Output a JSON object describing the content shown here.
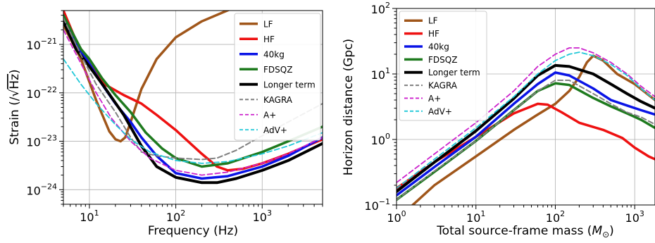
{
  "chart_data": [
    {
      "type": "line",
      "xscale": "log",
      "yscale": "log",
      "xlim": [
        5,
        5000
      ],
      "ylim": [
        5e-25,
        5e-21
      ],
      "xlabel": "Frequency (Hz)",
      "ylabel": "Strain (/√Hz)",
      "ylabel_parts": {
        "pre": "Strain (/",
        "root": "√",
        "rad": "Hz",
        "post": ")"
      },
      "xtick_labels": [
        {
          "value": 10,
          "base": "10",
          "exp": "1"
        },
        {
          "value": 100,
          "base": "10",
          "exp": "2"
        },
        {
          "value": 1000,
          "base": "10",
          "exp": "3"
        }
      ],
      "ytick_labels": [
        {
          "value": 1e-24,
          "base": "10",
          "exp": "−24"
        },
        {
          "value": 1e-23,
          "base": "10",
          "exp": "−23"
        },
        {
          "value": 1e-22,
          "base": "10",
          "exp": "−22"
        },
        {
          "value": 1e-21,
          "base": "10",
          "exp": "−21"
        }
      ],
      "grid": true,
      "legend_position": "top-right",
      "series": [
        {
          "name": "LF",
          "color": "#a0561a",
          "width": 3.5,
          "dash": "",
          "points": [
            [
              5,
              2.5e-21
            ],
            [
              8,
              5e-22
            ],
            [
              12,
              7e-23
            ],
            [
              17,
              1.6e-23
            ],
            [
              20,
              1.1e-23
            ],
            [
              23,
              1e-23
            ],
            [
              26,
              1.2e-23
            ],
            [
              30,
              2.5e-23
            ],
            [
              40,
              1.2e-22
            ],
            [
              60,
              5e-22
            ],
            [
              100,
              1.4e-21
            ],
            [
              200,
              3e-21
            ],
            [
              500,
              6e-21
            ]
          ]
        },
        {
          "name": "HF",
          "color": "#ee1111",
          "width": 3.5,
          "dash": "",
          "points": [
            [
              5,
              5e-21
            ],
            [
              7,
              1.2e-21
            ],
            [
              10,
              4e-22
            ],
            [
              15,
              1.5e-22
            ],
            [
              25,
              9e-23
            ],
            [
              40,
              6e-23
            ],
            [
              60,
              3.5e-23
            ],
            [
              100,
              1.7e-23
            ],
            [
              200,
              5.5e-24
            ],
            [
              300,
              3e-24
            ],
            [
              400,
              2.5e-24
            ],
            [
              600,
              2.7e-24
            ],
            [
              1000,
              3.5e-24
            ],
            [
              2000,
              5.5e-24
            ],
            [
              5000,
              1.1e-23
            ]
          ]
        },
        {
          "name": "40kg",
          "color": "#0a14e6",
          "width": 3.5,
          "dash": "",
          "points": [
            [
              5,
              4e-21
            ],
            [
              8,
              7e-22
            ],
            [
              10,
              4e-22
            ],
            [
              14,
              1.5e-22
            ],
            [
              20,
              6e-23
            ],
            [
              30,
              2.5e-23
            ],
            [
              40,
              1.2e-23
            ],
            [
              60,
              5e-24
            ],
            [
              100,
              2.2e-24
            ],
            [
              200,
              1.7e-24
            ],
            [
              400,
              1.9e-24
            ],
            [
              1000,
              3e-24
            ],
            [
              2000,
              5e-24
            ],
            [
              5000,
              1.2e-23
            ]
          ]
        },
        {
          "name": "FDSQZ",
          "color": "#1e7a1e",
          "width": 3.5,
          "dash": "",
          "points": [
            [
              5,
              4e-21
            ],
            [
              8,
              8e-22
            ],
            [
              10,
              5e-22
            ],
            [
              14,
              2e-22
            ],
            [
              20,
              9e-23
            ],
            [
              30,
              4e-23
            ],
            [
              45,
              1.5e-23
            ],
            [
              70,
              7e-24
            ],
            [
              100,
              4.5e-24
            ],
            [
              200,
              3e-24
            ],
            [
              400,
              3.5e-24
            ],
            [
              1000,
              6e-24
            ],
            [
              2000,
              1e-23
            ],
            [
              5000,
              2e-23
            ]
          ]
        },
        {
          "name": "Longer term",
          "color": "#000000",
          "width": 4,
          "dash": "",
          "points": [
            [
              5,
              3e-21
            ],
            [
              7,
              8e-22
            ],
            [
              10,
              3.5e-22
            ],
            [
              15,
              1.3e-22
            ],
            [
              25,
              3.5e-23
            ],
            [
              40,
              8e-24
            ],
            [
              60,
              3e-24
            ],
            [
              100,
              1.8e-24
            ],
            [
              200,
              1.4e-24
            ],
            [
              300,
              1.4e-24
            ],
            [
              500,
              1.7e-24
            ],
            [
              1000,
              2.5e-24
            ],
            [
              2000,
              4e-24
            ],
            [
              5000,
              9e-24
            ]
          ]
        },
        {
          "name": "KAGRA",
          "color": "#7f7f7f",
          "width": 2,
          "dash": "7 4",
          "points": [
            [
              5,
              3.5e-21
            ],
            [
              8,
              6e-22
            ],
            [
              12,
              1.5e-22
            ],
            [
              20,
              4e-23
            ],
            [
              30,
              1.2e-23
            ],
            [
              40,
              6e-24
            ],
            [
              60,
              5e-24
            ],
            [
              100,
              4.5e-24
            ],
            [
              200,
              4.2e-24
            ],
            [
              300,
              4.5e-24
            ],
            [
              500,
              6.5e-24
            ],
            [
              1000,
              1.3e-23
            ],
            [
              2000,
              2.5e-23
            ],
            [
              5000,
              6e-23
            ]
          ]
        },
        {
          "name": "A+",
          "color": "#cc22cc",
          "width": 1.8,
          "dash": "7 4",
          "points": [
            [
              5,
              2e-21
            ],
            [
              8,
              4e-22
            ],
            [
              12,
              1e-22
            ],
            [
              18,
              3e-23
            ],
            [
              30,
              1e-23
            ],
            [
              50,
              4.5e-24
            ],
            [
              100,
              2.5e-24
            ],
            [
              200,
              2e-24
            ],
            [
              400,
              2.3e-24
            ],
            [
              1000,
              3.5e-24
            ],
            [
              2000,
              5.5e-24
            ],
            [
              5000,
              1.2e-23
            ]
          ]
        },
        {
          "name": "AdV+",
          "color": "#20c8d8",
          "width": 1.8,
          "dash": "7 4",
          "points": [
            [
              5,
              5e-22
            ],
            [
              8,
              1.5e-22
            ],
            [
              12,
              6e-23
            ],
            [
              20,
              2.2e-23
            ],
            [
              30,
              1.1e-23
            ],
            [
              50,
              6e-24
            ],
            [
              100,
              4e-24
            ],
            [
              200,
              3.5e-24
            ],
            [
              400,
              3.8e-24
            ],
            [
              1000,
              5.5e-24
            ],
            [
              2000,
              8e-24
            ],
            [
              5000,
              1.5e-23
            ]
          ]
        }
      ]
    },
    {
      "type": "line",
      "xscale": "log",
      "yscale": "log",
      "xlim": [
        1,
        1800
      ],
      "ylim": [
        0.1,
        100
      ],
      "xlabel": "Total source-frame mass (M⊙)",
      "xlabel_parts": {
        "pre": "Total source-frame mass (",
        "sym": "M",
        "sub": "⊙",
        "post": ")"
      },
      "ylabel": "Horizon distance (Gpc)",
      "xtick_labels": [
        {
          "value": 1,
          "base": "10",
          "exp": "0"
        },
        {
          "value": 10,
          "base": "10",
          "exp": "1"
        },
        {
          "value": 100,
          "base": "10",
          "exp": "2"
        },
        {
          "value": 1000,
          "base": "10",
          "exp": "3"
        }
      ],
      "ytick_labels": [
        {
          "value": 0.1,
          "base": "10",
          "exp": "−1"
        },
        {
          "value": 1,
          "base": "10",
          "exp": "0"
        },
        {
          "value": 10,
          "base": "10",
          "exp": "1"
        },
        {
          "value": 100,
          "base": "10",
          "exp": "2"
        }
      ],
      "grid": true,
      "legend_position": "top-left",
      "series": [
        {
          "name": "LF",
          "color": "#a0561a",
          "width": 3.5,
          "dash": "",
          "points": [
            [
              1.6,
              0.1
            ],
            [
              3,
              0.2
            ],
            [
              10,
              0.55
            ],
            [
              30,
              1.4
            ],
            [
              60,
              2.4
            ],
            [
              100,
              3.5
            ],
            [
              150,
              5.5
            ],
            [
              200,
              9
            ],
            [
              250,
              15
            ],
            [
              300,
              19
            ],
            [
              400,
              16
            ],
            [
              600,
              10
            ],
            [
              1000,
              7
            ],
            [
              1800,
              4
            ]
          ]
        },
        {
          "name": "HF",
          "color": "#ee1111",
          "width": 3.5,
          "dash": "",
          "points": [
            [
              1,
              0.18
            ],
            [
              3,
              0.45
            ],
            [
              10,
              1.1
            ],
            [
              30,
              2.5
            ],
            [
              60,
              3.5
            ],
            [
              80,
              3.4
            ],
            [
              120,
              2.6
            ],
            [
              200,
              1.8
            ],
            [
              400,
              1.4
            ],
            [
              700,
              1.05
            ],
            [
              1000,
              0.75
            ],
            [
              1500,
              0.55
            ],
            [
              1800,
              0.5
            ]
          ]
        },
        {
          "name": "40kg",
          "color": "#0a14e6",
          "width": 3.5,
          "dash": "",
          "points": [
            [
              1,
              0.14
            ],
            [
              3,
              0.38
            ],
            [
              10,
              1.1
            ],
            [
              30,
              3.5
            ],
            [
              60,
              7
            ],
            [
              100,
              10.5
            ],
            [
              150,
              9.5
            ],
            [
              300,
              6
            ],
            [
              500,
              4
            ],
            [
              800,
              3.3
            ],
            [
              1200,
              2.8
            ],
            [
              1800,
              2.4
            ]
          ]
        },
        {
          "name": "FDSQZ",
          "color": "#1e7a1e",
          "width": 3.5,
          "dash": "",
          "points": [
            [
              1,
              0.12
            ],
            [
              3,
              0.32
            ],
            [
              10,
              0.95
            ],
            [
              30,
              2.8
            ],
            [
              60,
              5.5
            ],
            [
              100,
              7.2
            ],
            [
              150,
              6.8
            ],
            [
              300,
              4.3
            ],
            [
              500,
              3.2
            ],
            [
              800,
              2.5
            ],
            [
              1200,
              2
            ],
            [
              1800,
              1.5
            ]
          ]
        },
        {
          "name": "Longer term",
          "color": "#000000",
          "width": 4,
          "dash": "",
          "points": [
            [
              1,
              0.16
            ],
            [
              3,
              0.45
            ],
            [
              10,
              1.35
            ],
            [
              30,
              4.2
            ],
            [
              60,
              9.5
            ],
            [
              100,
              13.5
            ],
            [
              150,
              13
            ],
            [
              300,
              10
            ],
            [
              500,
              7
            ],
            [
              800,
              5
            ],
            [
              1200,
              3.8
            ],
            [
              1800,
              3
            ]
          ]
        },
        {
          "name": "KAGRA",
          "color": "#7f7f7f",
          "width": 2,
          "dash": "7 4",
          "points": [
            [
              1,
              0.12
            ],
            [
              3,
              0.33
            ],
            [
              10,
              0.95
            ],
            [
              30,
              2.8
            ],
            [
              60,
              5.5
            ],
            [
              100,
              8
            ],
            [
              150,
              8
            ],
            [
              300,
              5
            ],
            [
              500,
              3.5
            ],
            [
              800,
              2.6
            ],
            [
              1200,
              2.2
            ],
            [
              1800,
              1.7
            ]
          ]
        },
        {
          "name": "A+",
          "color": "#cc22cc",
          "width": 1.8,
          "dash": "7 4",
          "points": [
            [
              1,
              0.22
            ],
            [
              3,
              0.6
            ],
            [
              10,
              1.8
            ],
            [
              30,
              5.5
            ],
            [
              60,
              13
            ],
            [
              100,
              20
            ],
            [
              150,
              25
            ],
            [
              200,
              25
            ],
            [
              300,
              21
            ],
            [
              500,
              15
            ],
            [
              800,
              10
            ],
            [
              1200,
              6.5
            ],
            [
              1800,
              4.5
            ]
          ]
        },
        {
          "name": "AdV+",
          "color": "#20c8d8",
          "width": 1.8,
          "dash": "7 4",
          "points": [
            [
              1,
              0.18
            ],
            [
              3,
              0.5
            ],
            [
              10,
              1.5
            ],
            [
              30,
              4.5
            ],
            [
              60,
              10
            ],
            [
              100,
              16
            ],
            [
              150,
              20
            ],
            [
              200,
              21.5
            ],
            [
              300,
              19
            ],
            [
              500,
              14
            ],
            [
              800,
              9.5
            ],
            [
              1200,
              6
            ],
            [
              1800,
              4
            ]
          ]
        }
      ]
    }
  ]
}
